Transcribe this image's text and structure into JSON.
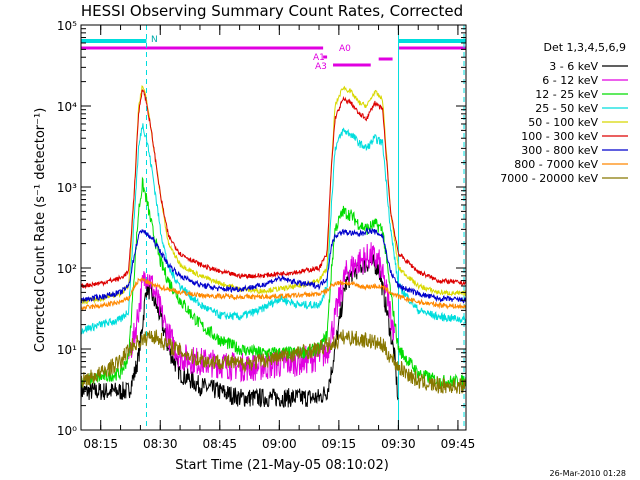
{
  "chart_data": {
    "type": "line",
    "title": "HESSI Observing Summary Count Rates, Corrected",
    "xlabel": "Start Time (21-May-05 08:10:02)",
    "ylabel": "Corrected Count Rate (s⁻¹ detector⁻¹)",
    "yscale": "log",
    "ylim": [
      1,
      100000
    ],
    "xlim_minutes": [
      0,
      97
    ],
    "x_ticks": [
      "08:15",
      "08:30",
      "08:45",
      "09:00",
      "09:15",
      "09:30",
      "09:45"
    ],
    "y_ticks": [
      "10⁰",
      "10¹",
      "10²",
      "10³",
      "10⁴",
      "10⁵"
    ],
    "legend_title": "Det 1,3,4,5,6,9",
    "legend_position": "right",
    "timestamp": "26-Mar-2010 01:28",
    "series": [
      {
        "name": "3 - 6 keV",
        "color": "#000000",
        "x": [
          0,
          12,
          13.5,
          14.5,
          15.5,
          16.5,
          18,
          20,
          22,
          25,
          30,
          35,
          40,
          45,
          50,
          55,
          60,
          62,
          63,
          65,
          66.5,
          68,
          70,
          73,
          75,
          77,
          79,
          80
        ],
        "y": [
          3,
          3,
          5,
          8,
          20,
          60,
          45,
          25,
          10,
          5,
          3.5,
          3,
          2.5,
          2.5,
          2.5,
          2.5,
          2.5,
          3,
          5,
          20,
          60,
          80,
          100,
          120,
          100,
          30,
          8,
          2
        ]
      },
      {
        "name": "6 - 12 keV",
        "color": "#e000e0",
        "x": [
          12,
          13.5,
          14.5,
          15.5,
          16.5,
          18,
          20,
          22,
          25,
          30,
          35,
          40,
          45,
          50,
          55,
          60,
          62,
          63,
          65,
          66.5,
          68,
          70,
          73,
          75,
          77,
          79
        ],
        "y": [
          8,
          15,
          30,
          60,
          90,
          60,
          30,
          15,
          8,
          7,
          6.5,
          6,
          6,
          6.5,
          7,
          8,
          9,
          15,
          40,
          80,
          100,
          120,
          140,
          120,
          50,
          15
        ]
      },
      {
        "name": "12 - 25 keV",
        "color": "#00dd00",
        "x": [
          0,
          5,
          10,
          12,
          13.5,
          14.5,
          15.5,
          16.5,
          18,
          20,
          22,
          25,
          30,
          35,
          40,
          45,
          50,
          55,
          60,
          62,
          63,
          64,
          66,
          68,
          70,
          72,
          74,
          76,
          78,
          80,
          85,
          90,
          97
        ],
        "y": [
          4,
          4.5,
          5,
          8,
          100,
          500,
          1100,
          700,
          300,
          120,
          70,
          40,
          20,
          13,
          10,
          9,
          9,
          9,
          10,
          15,
          80,
          300,
          500,
          450,
          350,
          300,
          350,
          300,
          50,
          10,
          5,
          4,
          4
        ]
      },
      {
        "name": "25 - 50 keV",
        "color": "#00dddd",
        "x": [
          0,
          5,
          10,
          12,
          13.5,
          14.5,
          15.5,
          16.5,
          18,
          20,
          22,
          25,
          30,
          35,
          40,
          45,
          50,
          55,
          60,
          62,
          63,
          64,
          66,
          68,
          70,
          72,
          74,
          76,
          78,
          80,
          85,
          90,
          97
        ],
        "y": [
          17,
          20,
          23,
          30,
          500,
          3000,
          6000,
          4000,
          1500,
          300,
          100,
          60,
          35,
          26,
          25,
          30,
          42,
          35,
          35,
          60,
          500,
          3000,
          5000,
          4500,
          3500,
          3000,
          4000,
          3500,
          300,
          60,
          30,
          25,
          23
        ]
      },
      {
        "name": "50 - 100 keV",
        "color": "#d8d800",
        "x": [
          0,
          5,
          10,
          12,
          13.5,
          14.5,
          15.5,
          16.5,
          18,
          20,
          22,
          25,
          30,
          35,
          40,
          45,
          50,
          55,
          60,
          62,
          63,
          64,
          66,
          68,
          70,
          72,
          74,
          76,
          78,
          80,
          85,
          90,
          97
        ],
        "y": [
          38,
          42,
          48,
          60,
          1000,
          10000,
          18000,
          12000,
          4000,
          800,
          200,
          110,
          80,
          65,
          55,
          52,
          55,
          60,
          70,
          100,
          1500,
          10000,
          17000,
          15000,
          11000,
          10000,
          15000,
          12000,
          500,
          100,
          60,
          50,
          48
        ]
      },
      {
        "name": "100 - 300 keV",
        "color": "#dd0000",
        "x": [
          0,
          5,
          10,
          12,
          13.5,
          14.5,
          15.5,
          16.5,
          18,
          20,
          22,
          25,
          30,
          35,
          40,
          45,
          50,
          55,
          60,
          62,
          63,
          64,
          66,
          68,
          70,
          72,
          74,
          76,
          78,
          80,
          85,
          90,
          97
        ],
        "y": [
          60,
          65,
          75,
          90,
          1000,
          8000,
          17000,
          11000,
          4000,
          800,
          250,
          150,
          110,
          90,
          80,
          80,
          85,
          90,
          100,
          150,
          1500,
          7000,
          12000,
          11000,
          8000,
          7000,
          11000,
          9000,
          500,
          150,
          90,
          70,
          65
        ]
      },
      {
        "name": "300 - 800 keV",
        "color": "#0000cc",
        "x": [
          0,
          5,
          10,
          12,
          13.5,
          14.5,
          15.5,
          16.5,
          18,
          20,
          22,
          25,
          30,
          35,
          40,
          45,
          50,
          55,
          60,
          62,
          63,
          64,
          66,
          68,
          70,
          72,
          74,
          76,
          78,
          80,
          85,
          90,
          97
        ],
        "y": [
          40,
          44,
          50,
          60,
          150,
          250,
          300,
          260,
          230,
          160,
          110,
          80,
          62,
          55,
          55,
          60,
          75,
          65,
          60,
          75,
          180,
          250,
          280,
          270,
          260,
          290,
          280,
          250,
          90,
          60,
          48,
          42,
          40
        ]
      },
      {
        "name": "800 - 7000 keV",
        "color": "#ff8800",
        "x": [
          0,
          5,
          10,
          12,
          13.5,
          14.5,
          15.5,
          16.5,
          18,
          20,
          22,
          25,
          30,
          35,
          40,
          45,
          50,
          55,
          60,
          62,
          63,
          64,
          66,
          68,
          70,
          72,
          74,
          76,
          78,
          80,
          85,
          90,
          97
        ],
        "y": [
          32,
          34,
          38,
          42,
          60,
          70,
          72,
          68,
          62,
          58,
          55,
          50,
          46,
          45,
          44,
          44,
          45,
          46,
          48,
          52,
          60,
          65,
          66,
          64,
          60,
          58,
          60,
          58,
          50,
          44,
          38,
          35,
          33
        ]
      },
      {
        "name": "7000 - 20000 keV",
        "color": "#887700",
        "x": [
          0,
          5,
          10,
          12,
          14,
          16,
          17.5,
          19,
          21,
          24,
          28,
          32,
          36,
          40,
          45,
          50,
          55,
          60,
          62,
          64,
          66,
          68,
          70,
          72,
          74,
          76,
          78,
          80,
          85,
          90,
          97
        ],
        "y": [
          4,
          5,
          7,
          10,
          12,
          13,
          15,
          14,
          12,
          10,
          8,
          7,
          7,
          6.5,
          7,
          8,
          9,
          10,
          11,
          12,
          14,
          14,
          13,
          13,
          12,
          11,
          8,
          6,
          4,
          3.5,
          3.5
        ]
      }
    ],
    "annotations": {
      "attenuator_label_A0": "A0",
      "attenuator_label_A1": "A1",
      "attenuator_label_A3": "A3",
      "night_label_N": "N"
    },
    "state_bars": [
      {
        "label": "N",
        "color": "#00dddd",
        "segments": [
          [
            0,
            16.5
          ],
          [
            80,
            97
          ]
        ]
      },
      {
        "label": "A0",
        "color": "#e000e0",
        "segments": [
          [
            0,
            61
          ],
          [
            80,
            97
          ]
        ]
      },
      {
        "label": "A1",
        "color": "#e000e0",
        "segments": [
          [
            61,
            62
          ]
        ]
      },
      {
        "label": "A3",
        "color": "#e000e0",
        "segments": [
          [
            63.5,
            73
          ],
          [
            75,
            78.5
          ]
        ]
      }
    ],
    "vertical_lines": [
      {
        "x": 16.5,
        "style": "dashed",
        "color": "#00dddd"
      },
      {
        "x": 80,
        "style": "solid",
        "color": "#00dddd"
      },
      {
        "x": 96.5,
        "style": "dashed",
        "color": "#00dddd"
      }
    ]
  }
}
